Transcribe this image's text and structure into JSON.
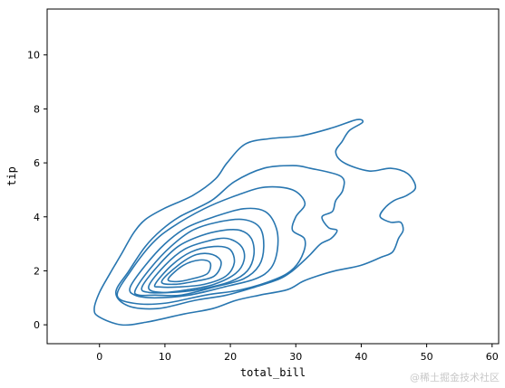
{
  "chart_data": {
    "type": "contour",
    "title": "",
    "xlabel": "total_bill",
    "ylabel": "tip",
    "xlim": [
      -8,
      61
    ],
    "ylim": [
      -0.7,
      11.7
    ],
    "xticks": [
      0,
      10,
      20,
      30,
      40,
      50,
      60
    ],
    "yticks": [
      0,
      2,
      4,
      6,
      8,
      10
    ],
    "grid": false,
    "legend": null,
    "color": "#2876b0",
    "contours": [
      {
        "level": 1,
        "points": [
          [
            -0.8,
            0.6
          ],
          [
            0,
            1.2
          ],
          [
            1.6,
            1.9
          ],
          [
            3.3,
            2.6
          ],
          [
            5.2,
            3.4
          ],
          [
            7.0,
            3.9
          ],
          [
            9.8,
            4.3
          ],
          [
            14.3,
            4.8
          ],
          [
            17.7,
            5.4
          ],
          [
            19.5,
            6.0
          ],
          [
            22.3,
            6.7
          ],
          [
            26.1,
            6.9
          ],
          [
            30.8,
            7.0
          ],
          [
            35.6,
            7.3
          ],
          [
            39.3,
            7.6
          ],
          [
            40.2,
            7.5
          ],
          [
            38.2,
            7.2
          ],
          [
            37.1,
            6.8
          ],
          [
            36.1,
            6.4
          ],
          [
            37.4,
            6.0
          ],
          [
            41.2,
            5.7
          ],
          [
            44.5,
            5.8
          ],
          [
            47.1,
            5.6
          ],
          [
            48.3,
            5.1
          ],
          [
            47.0,
            4.8
          ],
          [
            45.0,
            4.6
          ],
          [
            43.5,
            4.3
          ],
          [
            42.9,
            4.0
          ],
          [
            44.5,
            3.8
          ],
          [
            46.0,
            3.8
          ],
          [
            46.4,
            3.5
          ],
          [
            45.7,
            3.2
          ],
          [
            44.8,
            2.7
          ],
          [
            43.0,
            2.5
          ],
          [
            39.9,
            2.2
          ],
          [
            36.0,
            2.0
          ],
          [
            33.2,
            1.8
          ],
          [
            31.0,
            1.6
          ],
          [
            28.7,
            1.3
          ],
          [
            24.5,
            1.1
          ],
          [
            20.8,
            0.9
          ],
          [
            17.3,
            0.6
          ],
          [
            12.9,
            0.4
          ],
          [
            7.2,
            0.1
          ],
          [
            3.3,
            0.0
          ],
          [
            -0.1,
            0.3
          ],
          [
            -0.8,
            0.6
          ]
        ]
      },
      {
        "level": 2,
        "points": [
          [
            2.5,
            1.2
          ],
          [
            4.5,
            2.0
          ],
          [
            7.0,
            2.9
          ],
          [
            9.4,
            3.5
          ],
          [
            12.2,
            4.0
          ],
          [
            17.1,
            4.6
          ],
          [
            20.6,
            5.3
          ],
          [
            25.1,
            5.8
          ],
          [
            29.5,
            5.9
          ],
          [
            32.2,
            5.8
          ],
          [
            36.9,
            5.5
          ],
          [
            37.2,
            5.0
          ],
          [
            36.1,
            4.6
          ],
          [
            35.6,
            4.2
          ],
          [
            34.0,
            4.0
          ],
          [
            35.0,
            3.6
          ],
          [
            36.3,
            3.5
          ],
          [
            35.4,
            3.2
          ],
          [
            33.8,
            3.0
          ],
          [
            32.2,
            2.6
          ],
          [
            30.9,
            2.3
          ],
          [
            29.5,
            2.0
          ],
          [
            27.5,
            1.7
          ],
          [
            23.8,
            1.4
          ],
          [
            19.4,
            1.1
          ],
          [
            14.5,
            0.9
          ],
          [
            8.9,
            0.6
          ],
          [
            4.4,
            0.7
          ],
          [
            2.5,
            1.2
          ]
        ]
      },
      {
        "level": 3,
        "points": [
          [
            2.7,
            1.1
          ],
          [
            4.8,
            2.0
          ],
          [
            8.0,
            3.0
          ],
          [
            11.0,
            3.6
          ],
          [
            16.0,
            4.3
          ],
          [
            21.0,
            4.8
          ],
          [
            25.3,
            5.1
          ],
          [
            29.5,
            5.0
          ],
          [
            31.4,
            4.5
          ],
          [
            30.0,
            4.0
          ],
          [
            29.5,
            3.5
          ],
          [
            31.3,
            3.2
          ],
          [
            31.2,
            2.7
          ],
          [
            29.7,
            2.1
          ],
          [
            27.0,
            1.7
          ],
          [
            21.7,
            1.3
          ],
          [
            16.2,
            1.1
          ],
          [
            10.0,
            0.8
          ],
          [
            5.2,
            0.8
          ],
          [
            2.7,
            1.1
          ]
        ]
      },
      {
        "level": 4,
        "points": [
          [
            4.7,
            1.4
          ],
          [
            7.0,
            2.2
          ],
          [
            10.0,
            3.0
          ],
          [
            13.3,
            3.6
          ],
          [
            17.5,
            4.0
          ],
          [
            22.0,
            4.3
          ],
          [
            25.3,
            4.2
          ],
          [
            27.0,
            3.6
          ],
          [
            27.2,
            2.8
          ],
          [
            26.2,
            2.1
          ],
          [
            23.8,
            1.7
          ],
          [
            19.0,
            1.4
          ],
          [
            13.7,
            1.1
          ],
          [
            8.4,
            1.0
          ],
          [
            5.4,
            1.1
          ],
          [
            4.7,
            1.4
          ]
        ]
      },
      {
        "level": 5,
        "points": [
          [
            5.5,
            1.3
          ],
          [
            7.8,
            2.1
          ],
          [
            10.9,
            2.9
          ],
          [
            14.2,
            3.5
          ],
          [
            18.0,
            3.8
          ],
          [
            22.0,
            3.9
          ],
          [
            24.5,
            3.6
          ],
          [
            25.1,
            2.9
          ],
          [
            24.4,
            2.2
          ],
          [
            22.0,
            1.7
          ],
          [
            17.5,
            1.4
          ],
          [
            12.5,
            1.1
          ],
          [
            8.5,
            1.1
          ],
          [
            6.0,
            1.1
          ],
          [
            5.5,
            1.3
          ]
        ]
      },
      {
        "level": 6,
        "points": [
          [
            6.5,
            1.4
          ],
          [
            9.0,
            2.2
          ],
          [
            12.0,
            2.9
          ],
          [
            15.5,
            3.3
          ],
          [
            18.9,
            3.5
          ],
          [
            21.5,
            3.5
          ],
          [
            23.2,
            3.2
          ],
          [
            23.6,
            2.6
          ],
          [
            22.6,
            2.0
          ],
          [
            20.0,
            1.6
          ],
          [
            15.0,
            1.3
          ],
          [
            11.0,
            1.2
          ],
          [
            7.5,
            1.2
          ],
          [
            6.5,
            1.4
          ]
        ]
      },
      {
        "level": 7,
        "points": [
          [
            7.5,
            1.4
          ],
          [
            10.0,
            2.2
          ],
          [
            13.0,
            2.8
          ],
          [
            16.5,
            3.1
          ],
          [
            19.5,
            3.2
          ],
          [
            21.7,
            2.9
          ],
          [
            22.1,
            2.4
          ],
          [
            20.8,
            1.9
          ],
          [
            17.5,
            1.5
          ],
          [
            13.5,
            1.3
          ],
          [
            9.5,
            1.2
          ],
          [
            7.5,
            1.4
          ]
        ]
      },
      {
        "level": 8,
        "points": [
          [
            8.5,
            1.5
          ],
          [
            11.0,
            2.2
          ],
          [
            14.0,
            2.7
          ],
          [
            17.5,
            2.9
          ],
          [
            19.9,
            2.8
          ],
          [
            20.6,
            2.3
          ],
          [
            19.3,
            1.8
          ],
          [
            16.0,
            1.5
          ],
          [
            12.0,
            1.4
          ],
          [
            9.3,
            1.4
          ],
          [
            8.5,
            1.5
          ]
        ]
      },
      {
        "level": 9,
        "points": [
          [
            9.5,
            1.6
          ],
          [
            12.0,
            2.2
          ],
          [
            14.8,
            2.6
          ],
          [
            17.3,
            2.6
          ],
          [
            18.6,
            2.3
          ],
          [
            17.5,
            1.8
          ],
          [
            14.3,
            1.6
          ],
          [
            11.5,
            1.5
          ],
          [
            9.5,
            1.6
          ]
        ]
      },
      {
        "level": 10,
        "points": [
          [
            10.5,
            1.7
          ],
          [
            12.8,
            2.2
          ],
          [
            15.3,
            2.4
          ],
          [
            16.9,
            2.3
          ],
          [
            16.5,
            1.9
          ],
          [
            14.1,
            1.7
          ],
          [
            11.8,
            1.6
          ],
          [
            10.5,
            1.7
          ]
        ]
      }
    ]
  },
  "watermark": "@稀土掘金技术社区"
}
